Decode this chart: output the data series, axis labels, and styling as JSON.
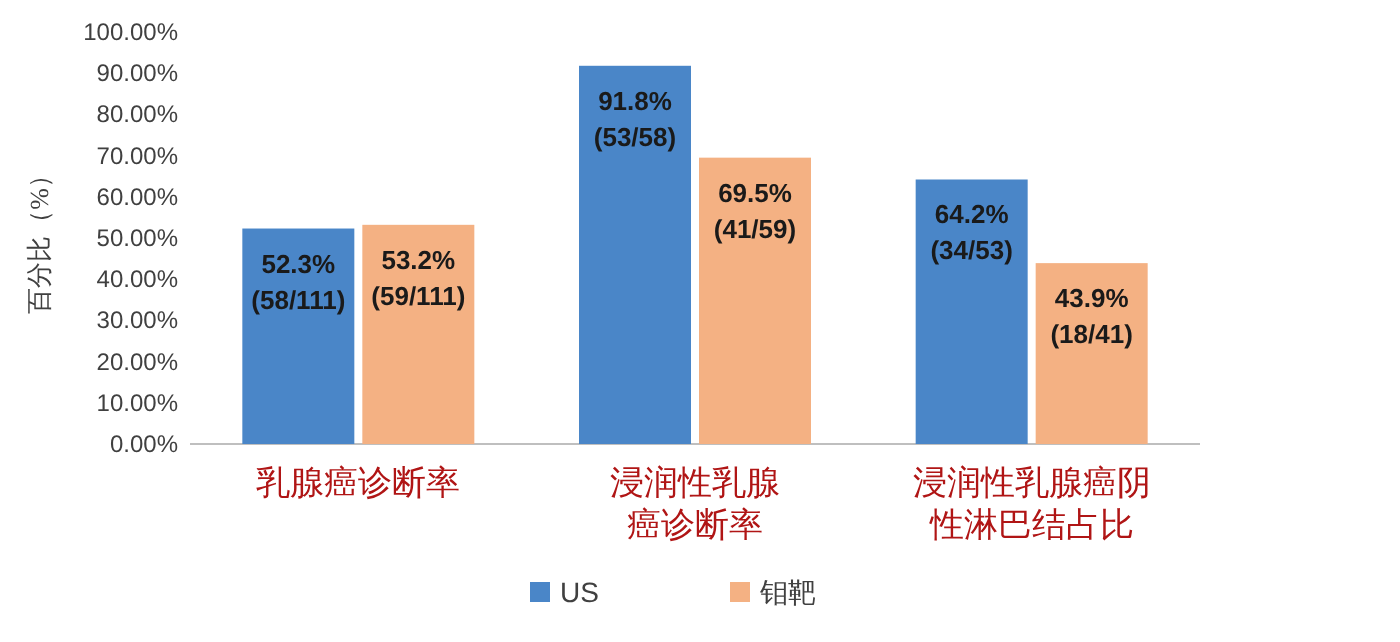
{
  "chart_data": {
    "type": "bar",
    "ylabel": "百分比（%）",
    "categories": [
      "乳腺癌诊断率",
      "浸润性乳腺癌诊断率",
      "浸润性乳腺癌阴性淋巴结占比"
    ],
    "series": [
      {
        "name": "US",
        "color": "#4a86c8",
        "values": [
          52.3,
          91.8,
          64.2
        ],
        "value_labels": [
          "52.3%\n(58/111)",
          "91.8%\n(53/58)",
          "64.2%\n(34/53)"
        ]
      },
      {
        "name": "钼靶",
        "color": "#f4b183",
        "values": [
          53.2,
          69.5,
          43.9
        ],
        "value_labels": [
          "53.2%\n(59/111)",
          "69.5%\n(41/59)",
          "43.9%\n(18/41)"
        ]
      }
    ],
    "ylim": [
      0,
      100
    ],
    "yticks": [
      {
        "value": 0,
        "label": "0.00%"
      },
      {
        "value": 10,
        "label": "10.00%"
      },
      {
        "value": 20,
        "label": "20.00%"
      },
      {
        "value": 30,
        "label": "30.00%"
      },
      {
        "value": 40,
        "label": "40.00%"
      },
      {
        "value": 50,
        "label": "50.00%"
      },
      {
        "value": 60,
        "label": "60.00%"
      },
      {
        "value": 70,
        "label": "70.00%"
      },
      {
        "value": 80,
        "label": "80.00%"
      },
      {
        "value": 90,
        "label": "90.00%"
      },
      {
        "value": 100,
        "label": "100.00%"
      }
    ],
    "grid": false,
    "legend": "bottom"
  }
}
